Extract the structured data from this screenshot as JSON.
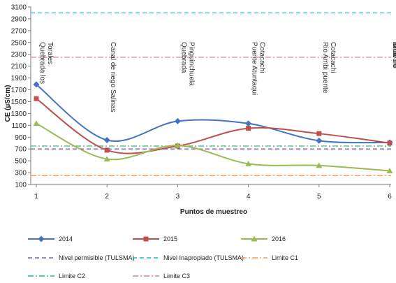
{
  "chart_data": {
    "type": "line",
    "xlabel": "Puntos de muestreo",
    "ylabel": "CE (µS/cm)",
    "categories": [
      "1",
      "2",
      "3",
      "4",
      "5",
      "6"
    ],
    "ylim": [
      100,
      3100
    ],
    "yticks": [
      100,
      300,
      500,
      700,
      900,
      1100,
      1300,
      1500,
      1700,
      1900,
      2100,
      2300,
      2500,
      2700,
      2900,
      3100
    ],
    "grid": false,
    "legend_position": "bottom",
    "series": [
      {
        "name": "2014",
        "values": [
          1790,
          850,
          1170,
          1130,
          840,
          810
        ],
        "color": "#4472c4",
        "marker": "diamond"
      },
      {
        "name": "2015",
        "values": [
          1550,
          680,
          750,
          1050,
          960,
          800
        ],
        "color": "#c0504d",
        "marker": "square"
      },
      {
        "name": "2016",
        "values": [
          1130,
          530,
          760,
          450,
          420,
          330
        ],
        "color": "#9bbb59",
        "marker": "triangle"
      }
    ],
    "reference_lines": [
      {
        "name": "Nivel permisible (TULSMA)",
        "value": 700,
        "color": "#7060a8",
        "dash": "6,4"
      },
      {
        "name": "Nivel Inapropiado (TULSMA)",
        "value": 3000,
        "color": "#1fb0e0",
        "dash": "6,4"
      },
      {
        "name": "Limite C1",
        "value": 250,
        "color": "#f0a060",
        "dash": "8,3,2,3"
      },
      {
        "name": "Limite C2",
        "value": 750,
        "color": "#3cb371",
        "dash": "8,3,2,3"
      },
      {
        "name": "Limite C3",
        "value": 2250,
        "color": "#d08890",
        "dash": "8,3,2,3"
      }
    ],
    "site_labels": [
      {
        "x": "1",
        "lines": [
          "Quebrada los",
          "Torales"
        ]
      },
      {
        "x": "2",
        "lines": [
          "Canal de riego Salinas"
        ]
      },
      {
        "x": "3",
        "lines": [
          "Quebrada",
          "Pinguinchuela"
        ]
      },
      {
        "x": "4",
        "lines": [
          "Puente Atuntaqui",
          "Cotacachi"
        ]
      },
      {
        "x": "5",
        "lines": [
          "Rio Ambi puente",
          "Cotacachi"
        ]
      },
      {
        "x": "6",
        "lines": [
          "Chavaro",
          "inicio rio",
          "Ambi"
        ]
      }
    ]
  }
}
